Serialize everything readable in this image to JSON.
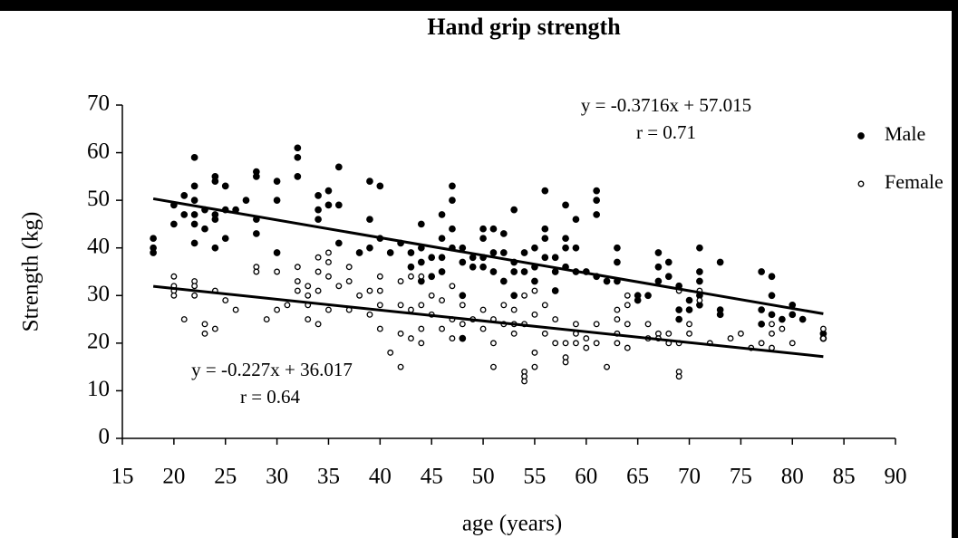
{
  "chart_data": {
    "type": "scatter",
    "title": "Hand grip strength",
    "x_label": "age (years)",
    "y_label": "Strength (kg)",
    "xlim": [
      15,
      90
    ],
    "xticks": [
      15,
      20,
      25,
      30,
      35,
      40,
      45,
      50,
      55,
      60,
      65,
      70,
      75,
      80,
      85,
      90
    ],
    "ylim": [
      0,
      70
    ],
    "yticks": [
      0,
      10,
      20,
      30,
      40,
      50,
      60,
      70
    ],
    "series": [
      {
        "name": "Male",
        "color": "#000000",
        "filled": true,
        "x": [
          18,
          18,
          18,
          20,
          20,
          21,
          21,
          22,
          22,
          22,
          22,
          22,
          22,
          23,
          23,
          24,
          24,
          24,
          24,
          24,
          25,
          25,
          25,
          26,
          27,
          28,
          28,
          28,
          28,
          30,
          30,
          30,
          32,
          32,
          32,
          34,
          34,
          34,
          35,
          35,
          36,
          36,
          36,
          38,
          39,
          39,
          39,
          40,
          40,
          41,
          42,
          43,
          43,
          44,
          44,
          44,
          44,
          45,
          45,
          46,
          46,
          46,
          46,
          47,
          47,
          47,
          47,
          48,
          48,
          48,
          48,
          49,
          49,
          50,
          50,
          50,
          50,
          51,
          51,
          51,
          52,
          52,
          52,
          53,
          53,
          53,
          53,
          54,
          54,
          55,
          55,
          55,
          56,
          56,
          56,
          56,
          57,
          57,
          57,
          58,
          58,
          58,
          58,
          59,
          59,
          59,
          60,
          61,
          61,
          61,
          61,
          62,
          63,
          63,
          63,
          65,
          65,
          66,
          67,
          67,
          67,
          68,
          68,
          69,
          69,
          69,
          70,
          70,
          71,
          71,
          71,
          71,
          71,
          73,
          73,
          73,
          77,
          77,
          77,
          78,
          78,
          78,
          79,
          80,
          80,
          81,
          83,
          83
        ],
        "values": [
          42,
          40,
          39,
          45,
          49,
          51,
          47,
          59,
          53,
          50,
          47,
          45,
          41,
          48,
          44,
          55,
          54,
          47,
          46,
          40,
          53,
          48,
          42,
          48,
          50,
          56,
          55,
          46,
          43,
          54,
          50,
          39,
          61,
          59,
          55,
          51,
          48,
          46,
          52,
          49,
          57,
          49,
          41,
          39,
          54,
          46,
          40,
          53,
          42,
          39,
          41,
          39,
          36,
          45,
          40,
          37,
          33,
          38,
          34,
          47,
          42,
          38,
          35,
          53,
          50,
          44,
          40,
          40,
          37,
          30,
          21,
          38,
          36,
          44,
          42,
          38,
          36,
          44,
          39,
          35,
          43,
          39,
          33,
          48,
          37,
          35,
          30,
          39,
          35,
          40,
          36,
          33,
          52,
          44,
          42,
          38,
          38,
          35,
          31,
          49,
          42,
          40,
          36,
          46,
          40,
          35,
          35,
          52,
          50,
          47,
          34,
          33,
          40,
          37,
          33,
          30,
          29,
          30,
          39,
          36,
          33,
          37,
          34,
          32,
          27,
          25,
          29,
          27,
          40,
          35,
          33,
          30,
          28,
          37,
          27,
          26,
          35,
          27,
          24,
          34,
          30,
          26,
          25,
          28,
          26,
          25,
          22,
          21
        ]
      },
      {
        "name": "Female",
        "color": "#000000",
        "filled": false,
        "x": [
          20,
          20,
          20,
          20,
          21,
          22,
          22,
          22,
          23,
          23,
          24,
          24,
          25,
          26,
          28,
          28,
          29,
          30,
          30,
          31,
          32,
          32,
          32,
          33,
          33,
          33,
          33,
          34,
          34,
          34,
          34,
          35,
          35,
          35,
          35,
          36,
          37,
          37,
          37,
          38,
          39,
          39,
          40,
          40,
          40,
          40,
          41,
          42,
          42,
          42,
          42,
          43,
          43,
          43,
          44,
          44,
          44,
          44,
          45,
          45,
          46,
          46,
          47,
          47,
          47,
          48,
          48,
          49,
          50,
          50,
          51,
          51,
          51,
          52,
          52,
          53,
          53,
          53,
          54,
          54,
          54,
          54,
          54,
          55,
          55,
          55,
          55,
          56,
          56,
          57,
          57,
          58,
          58,
          58,
          59,
          59,
          59,
          60,
          60,
          61,
          61,
          62,
          63,
          63,
          63,
          63,
          64,
          64,
          64,
          64,
          66,
          66,
          67,
          67,
          68,
          68,
          69,
          69,
          69,
          69,
          70,
          70,
          71,
          71,
          72,
          74,
          75,
          76,
          77,
          78,
          78,
          78,
          79,
          80,
          83,
          83
        ],
        "values": [
          34,
          32,
          31,
          30,
          25,
          33,
          32,
          30,
          24,
          22,
          31,
          23,
          29,
          27,
          36,
          35,
          25,
          35,
          27,
          28,
          36,
          33,
          31,
          32,
          30,
          28,
          25,
          38,
          35,
          31,
          24,
          39,
          37,
          34,
          27,
          32,
          36,
          33,
          27,
          30,
          31,
          26,
          34,
          31,
          28,
          23,
          18,
          33,
          28,
          22,
          15,
          34,
          27,
          21,
          34,
          28,
          23,
          20,
          30,
          26,
          29,
          23,
          32,
          25,
          21,
          28,
          24,
          25,
          27,
          23,
          25,
          20,
          15,
          28,
          24,
          27,
          24,
          22,
          30,
          24,
          14,
          13,
          12,
          31,
          26,
          18,
          15,
          28,
          22,
          25,
          20,
          20,
          17,
          16,
          24,
          22,
          20,
          21,
          19,
          24,
          20,
          15,
          27,
          25,
          22,
          20,
          30,
          28,
          24,
          19,
          24,
          21,
          22,
          21,
          22,
          20,
          31,
          20,
          14,
          13,
          24,
          22,
          29,
          31,
          20,
          21,
          22,
          19,
          20,
          24,
          22,
          19,
          23,
          20,
          23,
          21
        ]
      }
    ],
    "trendlines": [
      {
        "slope": -0.3716,
        "intercept": 57.015,
        "xrange": [
          18,
          83
        ],
        "equation": "y = -0.3716x + 57.015",
        "r": "r = 0.71"
      },
      {
        "slope": -0.227,
        "intercept": 36.017,
        "xrange": [
          18,
          83
        ],
        "equation": "y = -0.227x + 36.017",
        "r": "r = 0.64"
      }
    ],
    "legend": "right"
  }
}
